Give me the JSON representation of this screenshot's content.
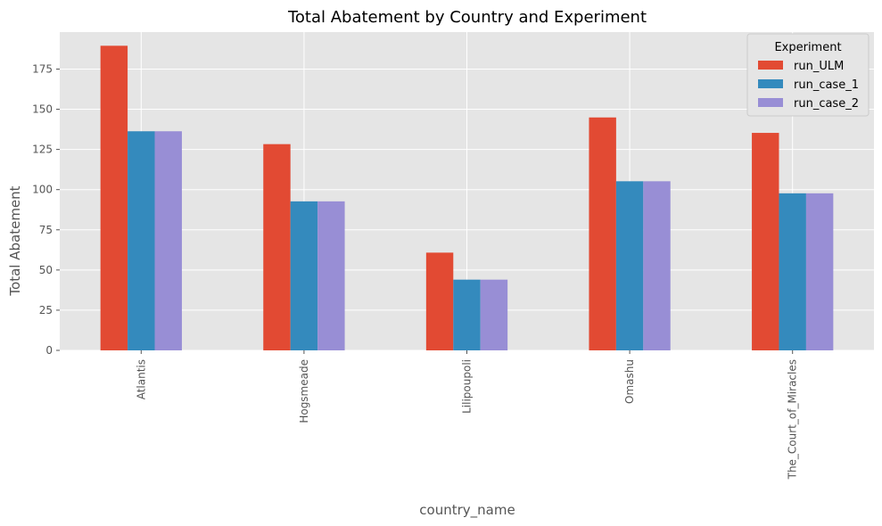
{
  "chart_data": {
    "type": "bar",
    "title": "Total Abatement by Country and Experiment",
    "xlabel": "country_name",
    "ylabel": "Total Abatement",
    "categories": [
      "Atlantis",
      "Hogsmeade",
      "Lilipoupoli",
      "Omashu",
      "The_Court_of_Miracles"
    ],
    "series": [
      {
        "name": "run_ULM",
        "color": "#E24A33",
        "values": [
          189.5,
          128.3,
          60.8,
          144.9,
          135.3
        ]
      },
      {
        "name": "run_case_1",
        "color": "#348ABD",
        "values": [
          136.3,
          92.7,
          44.0,
          105.2,
          97.7
        ]
      },
      {
        "name": "run_case_2",
        "color": "#988ED5",
        "values": [
          136.3,
          92.7,
          44.0,
          105.2,
          97.7
        ]
      }
    ],
    "ylim": [
      0,
      198
    ],
    "yticks": [
      0,
      25,
      50,
      75,
      100,
      125,
      150,
      175
    ],
    "grid": true,
    "legend": {
      "title": "Experiment",
      "placement": "top-right"
    },
    "background": "#E5E5E5",
    "grid_color": "#FFFFFF"
  }
}
